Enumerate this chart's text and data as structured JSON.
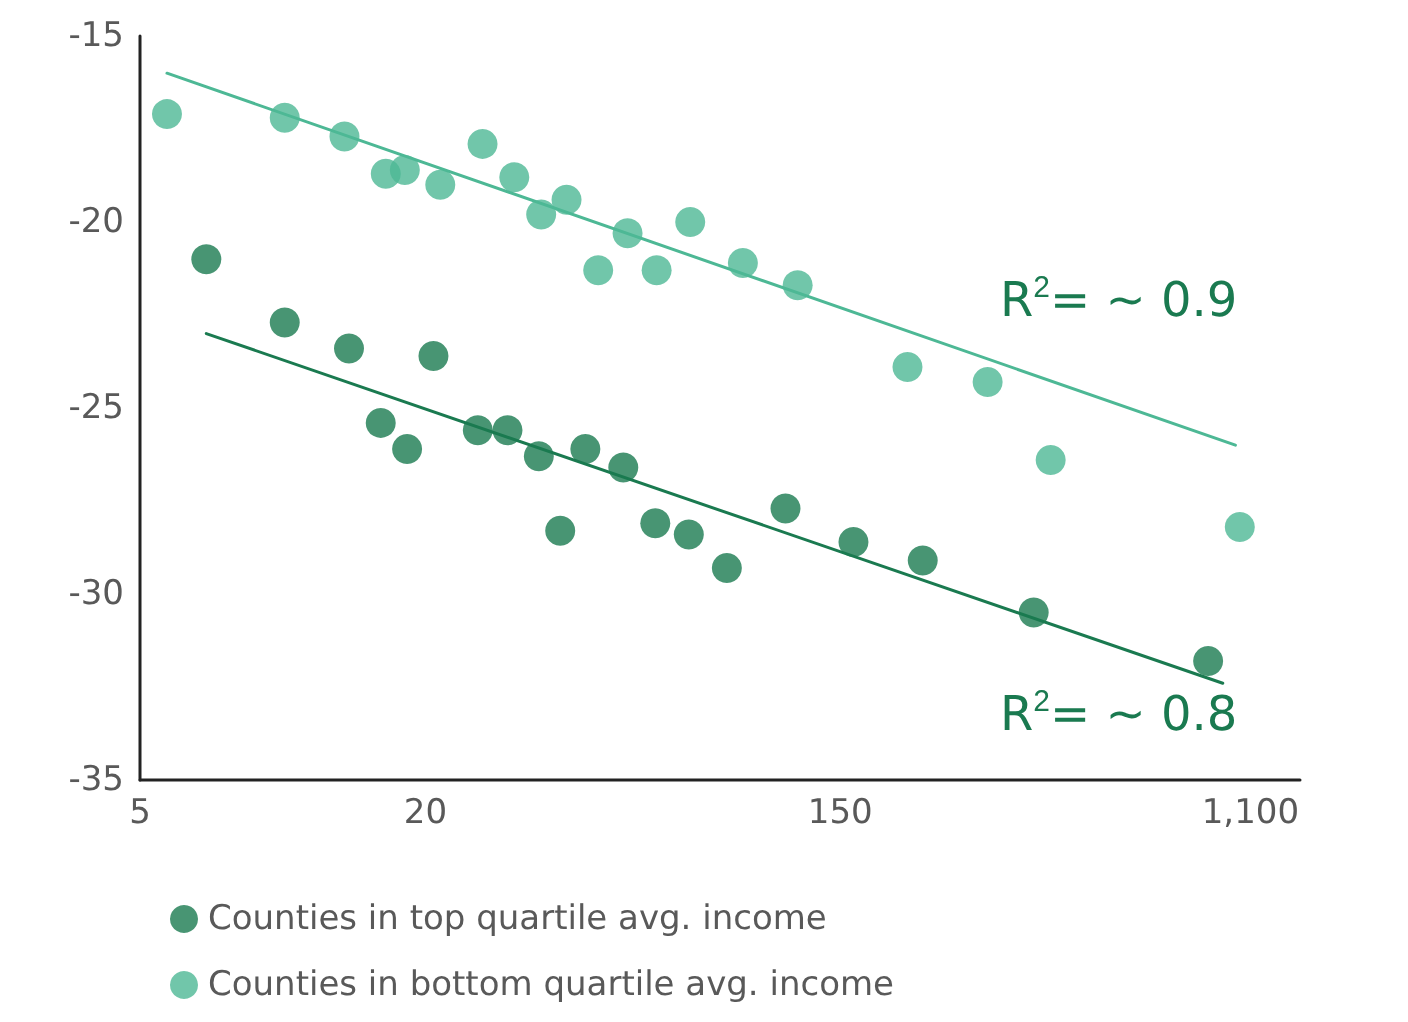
{
  "chart_data": {
    "type": "scatter",
    "log": "x",
    "xlim": [
      5,
      1400
    ],
    "xticks": [
      5,
      20,
      150,
      {
        "value": 1100,
        "label": "1,100"
      }
    ],
    "ylim": [
      -35,
      -15
    ],
    "yticks": [
      -35,
      -30,
      -25,
      -20,
      -15
    ],
    "grid": false,
    "legend": "bottom",
    "marker": "circle",
    "series": [
      {
        "name": "Counties in top quartile avg. income",
        "color": "#1a7a50",
        "x": [
          6.9,
          10.1,
          13.8,
          16.1,
          18.3,
          20.8,
          25.8,
          29.8,
          34.7,
          38.5,
          43.5,
          52.3,
          61.1,
          71.9,
          86.5,
          115,
          160,
          224,
          384,
          896
        ],
        "values": [
          -21.0,
          -22.7,
          -23.4,
          -25.4,
          -26.1,
          -23.6,
          -25.6,
          -25.6,
          -26.3,
          -28.3,
          -26.1,
          -26.6,
          -28.1,
          -28.4,
          -29.3,
          -27.7,
          -28.6,
          -29.1,
          -30.5,
          -31.8
        ]
      },
      {
        "name": "Counties in bottom quartile avg. income",
        "color": "#4db895",
        "x": [
          5.7,
          10.1,
          13.5,
          16.5,
          18.1,
          21.5,
          26.4,
          30.8,
          35.1,
          39.7,
          46.3,
          53.4,
          61.5,
          72.4,
          93.5,
          122,
          208,
          307,
          417,
          1045
        ],
        "values": [
          -17.1,
          -17.2,
          -17.7,
          -18.7,
          -18.6,
          -19.0,
          -17.9,
          -18.8,
          -19.8,
          -19.4,
          -21.3,
          -20.3,
          -21.3,
          -20.0,
          -21.1,
          -21.7,
          -23.9,
          -24.3,
          -26.4,
          -28.2
        ]
      },
      {
        "type": "line",
        "marker": "none",
        "line_style": "solid",
        "color": "#1a7a50",
        "x": [
          6.9,
          962
        ],
        "values": [
          -23.0,
          -32.4
        ]
      },
      {
        "type": "line",
        "marker": "none",
        "line_style": "solid",
        "color": "#4db895",
        "x": [
          5.7,
          1023
        ],
        "values": [
          -16.0,
          -26.0
        ]
      }
    ],
    "annotations": [
      "R$^{2}$= ~ 0.9",
      "R$^{2}$= ~ 0.8"
    ]
  }
}
